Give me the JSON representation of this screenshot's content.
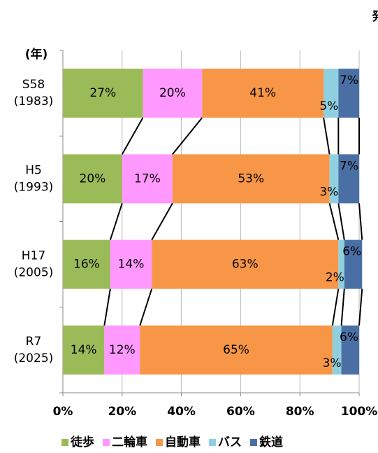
{
  "chart_data": {
    "type": "stacked_barh",
    "note": "発",
    "y_axis_label": "(年)",
    "categories": [
      [
        "S58",
        "(1983)"
      ],
      [
        "H5",
        "(1993)"
      ],
      [
        "H17",
        "(2005)"
      ],
      [
        "R7",
        "(2025)"
      ]
    ],
    "series": [
      {
        "name": "徒歩",
        "color": "#9bbb59",
        "values": [
          27,
          20,
          16,
          14
        ],
        "value_labels": [
          "27%",
          "20%",
          "16%",
          "14%"
        ]
      },
      {
        "name": "二輪車",
        "color": "#ff99ff",
        "values": [
          20,
          17,
          14,
          12
        ],
        "value_labels": [
          "20%",
          "17%",
          "14%",
          "12%"
        ]
      },
      {
        "name": "自動車",
        "color": "#f79646",
        "values": [
          41,
          53,
          63,
          65
        ],
        "value_labels": [
          "41%",
          "53%",
          "63%",
          "65%"
        ]
      },
      {
        "name": "バス",
        "color": "#8fd0e0",
        "values": [
          5,
          3,
          2,
          3
        ],
        "value_labels": [
          "5%",
          "3%",
          "2%",
          "3%"
        ]
      },
      {
        "name": "鉄道",
        "color": "#4a6fa5",
        "values": [
          7,
          7,
          6,
          6
        ],
        "value_labels": [
          "7%",
          "7%",
          "6%",
          "6%"
        ]
      }
    ],
    "xlim": [
      0,
      100
    ],
    "xticks": [
      {
        "value": 0,
        "label": "0%"
      },
      {
        "value": 20,
        "label": "20%"
      },
      {
        "value": 40,
        "label": "40%"
      },
      {
        "value": 60,
        "label": "60%"
      },
      {
        "value": 80,
        "label": "80%"
      },
      {
        "value": 100,
        "label": "100%"
      }
    ],
    "grid": true,
    "legend": "bottom"
  }
}
